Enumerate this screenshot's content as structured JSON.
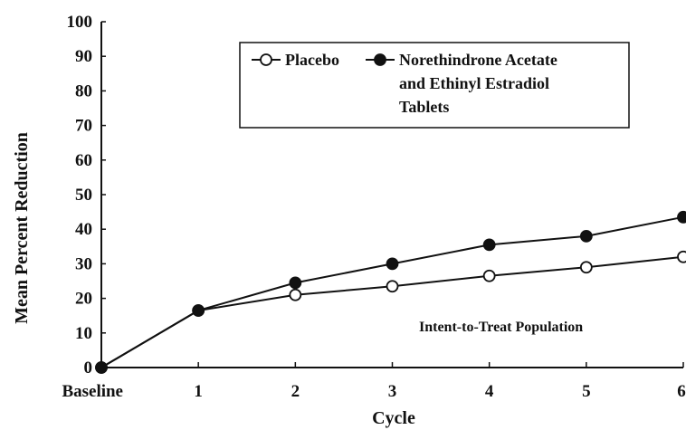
{
  "chart_data": {
    "type": "line",
    "title": "",
    "xlabel": "Cycle",
    "ylabel": "Mean Percent Reduction",
    "categories": [
      "Baseline",
      "1",
      "2",
      "3",
      "4",
      "5",
      "6"
    ],
    "ylim": [
      0,
      100
    ],
    "yticks": [
      "0",
      "10",
      "20",
      "30",
      "40",
      "50",
      "60",
      "70",
      "80",
      "90",
      "100"
    ],
    "grid": false,
    "legend_position": "top-right",
    "series": [
      {
        "name": "Placebo",
        "marker": "open-circle",
        "color": "#111111",
        "values": [
          0,
          16.5,
          21,
          23.5,
          26.5,
          29,
          32
        ]
      },
      {
        "name": "Norethindrone Acetate and Ethinyl Estradiol Tablets",
        "name_lines": [
          "Norethindrone Acetate",
          "and Ethinyl Estradiol",
          "Tablets"
        ],
        "marker": "filled-circle",
        "color": "#111111",
        "values": [
          0,
          16.5,
          24.5,
          30,
          35.5,
          38,
          43.5
        ]
      }
    ],
    "annotation": "Intent-to-Treat Population"
  }
}
